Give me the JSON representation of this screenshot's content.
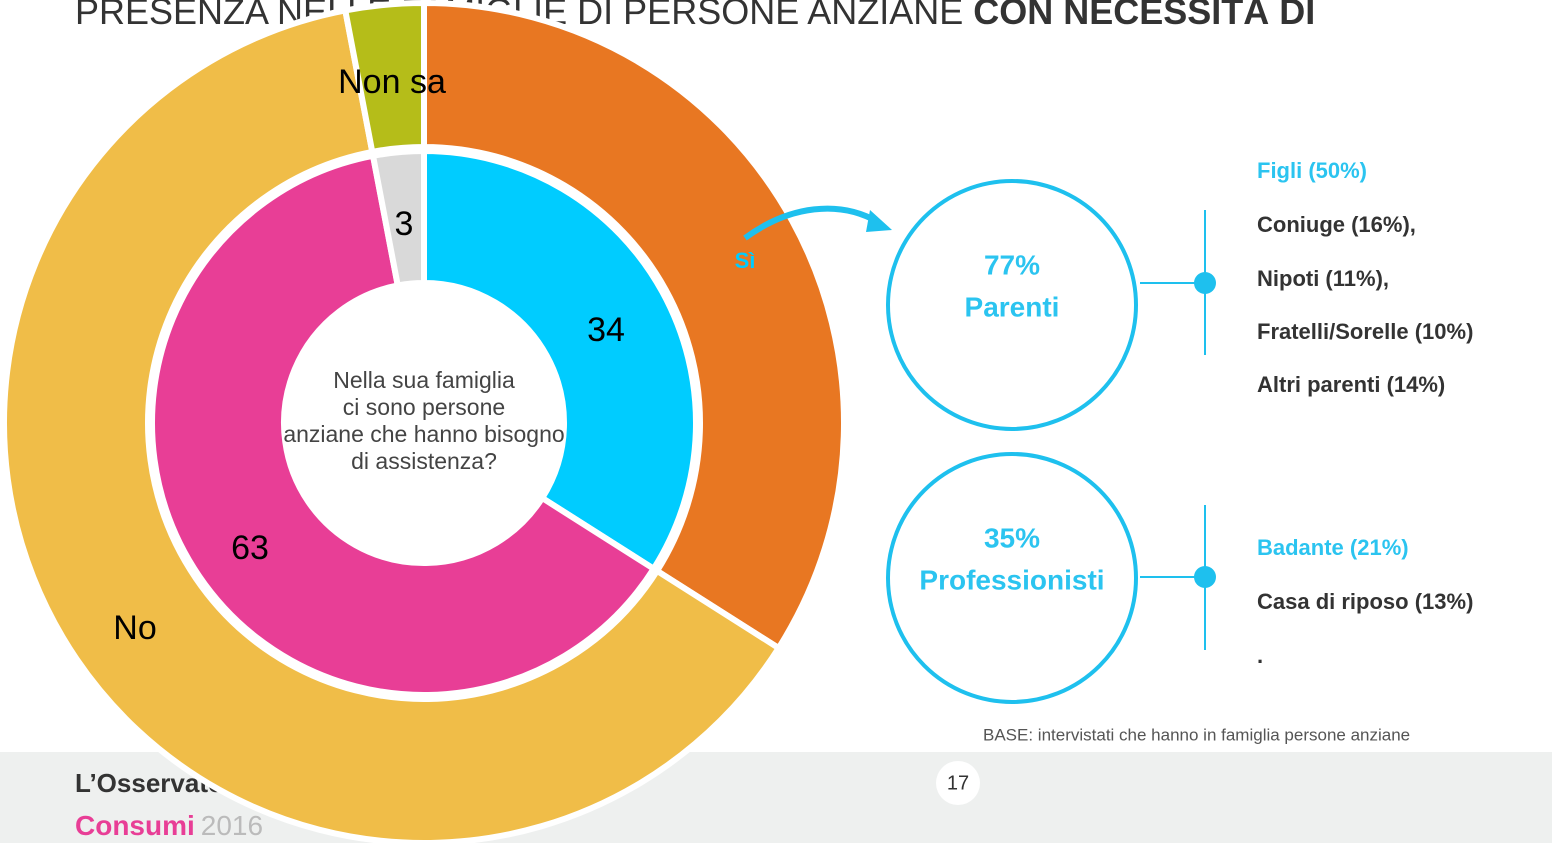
{
  "chart_data": {
    "type": "pie",
    "title": [
      "PRESENZA NELLE FAMIGLIE DI PERSONE ANZIANE",
      "CON NECESSITÀ DI"
    ],
    "center_label": [
      "Nella sua famiglia",
      "ci sono persone",
      "anziane che hanno bisogno",
      "di assistenza?"
    ],
    "rings": [
      {
        "categories": [
          "Sì",
          "No",
          "Non sa"
        ],
        "values": [
          34,
          63,
          3
        ],
        "colors": [
          "#E87722",
          "#F0BD48",
          "#B5BD19"
        ],
        "label_colors": [
          "#00CCFF",
          "#000000",
          "#000000"
        ]
      },
      {
        "values": [
          34,
          63,
          3
        ],
        "colors": [
          "#00CCFF",
          "#E83E96",
          "#D9D9D9"
        ]
      }
    ]
  },
  "panel": {
    "groups": [
      {
        "percent": "77%",
        "label": "Parenti",
        "items": [
          "Figli (50%)",
          "Coniuge (16%),",
          "Nipoti (11%),",
          "Fratelli/Sorelle (10%)",
          "Altri parenti (14%)"
        ]
      },
      {
        "percent": "35%",
        "label": "Professionisti",
        "items": [
          "Badante (21%)",
          "Casa di riposo (13%)",
          "."
        ]
      }
    ],
    "note": "BASE: intervistati che hanno in famiglia persone anziane"
  },
  "footer": {
    "logo_top": "L’Osservatorio",
    "logo_brand": "Consumi",
    "logo_year": "2016",
    "page": "17"
  }
}
